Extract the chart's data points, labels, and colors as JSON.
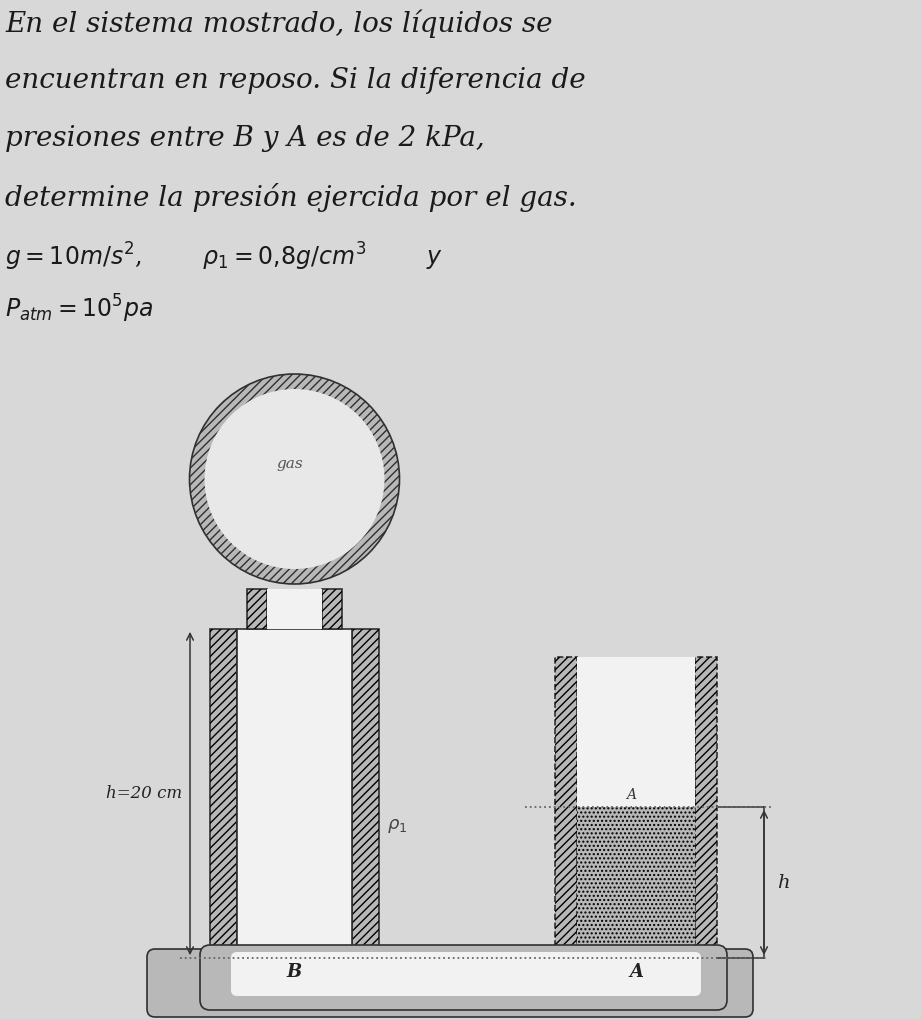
{
  "title_lines": [
    "En el sistema mostrado, los líquidos se",
    "encuentran en reposo. Si la diferencia de",
    "presiones entre B y A es de 2 kPa,",
    "determine la presión ejercida por el gas."
  ],
  "bg_color": "#d8d8d8",
  "text_color": "#1a1a1a",
  "gray_fill": "#b8b8b8",
  "hatch_fill": "#c0c0c0",
  "inner_fill": "#e8e8e8",
  "white_fill": "#f2f2f2",
  "edge_color": "#303030",
  "label_h_left": "h=20 cm",
  "label_rho": "$\\rho_1$",
  "label_B": "B",
  "label_A": "A",
  "label_gas": "gas",
  "label_h_right": "h"
}
